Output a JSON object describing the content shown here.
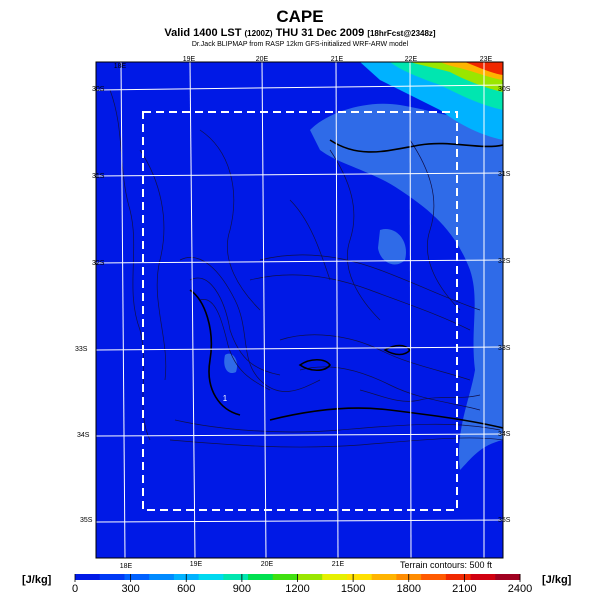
{
  "title": "CAPE",
  "subtitle": {
    "main": "Valid 1400 LST",
    "code": "(1200Z)",
    "date": "THU 31 Dec 2009",
    "forecast": "[18hrFcst@2348z]"
  },
  "credit": "Dr.Jack BLIPMAP from RASP 12km GFS-initialized WRF-ARW model",
  "longitude_labels_top": [
    "18E",
    "19E",
    "20E",
    "21E",
    "22E",
    "23E"
  ],
  "longitude_labels_bottom": [
    "18E",
    "19E",
    "20E",
    "21E"
  ],
  "latitude_labels_right": [
    "30S",
    "31S",
    "32S",
    "33S",
    "34S",
    "35S"
  ],
  "latitude_labels_left": [
    "30S",
    "31S",
    "32S",
    "33S",
    "34S",
    "35S"
  ],
  "spot_label": "1",
  "terrain_note": "Terrain contours: 500 ft",
  "colorbar": {
    "unit": "[J/kg]",
    "ticks": [
      "0",
      "300",
      "600",
      "900",
      "1200",
      "1500",
      "1800",
      "2100",
      "2400"
    ],
    "colors": [
      "#0019e6",
      "#0039f5",
      "#0061ff",
      "#008aff",
      "#00b2ff",
      "#00d9f0",
      "#00e6b0",
      "#00e050",
      "#40e010",
      "#9ae600",
      "#e6f000",
      "#ffe000",
      "#ffb400",
      "#ff8c00",
      "#ff5a00",
      "#f02800",
      "#d00010",
      "#a00020"
    ]
  },
  "colors": {
    "background_field": "#0019e6",
    "low_field": "#2f6be8"
  }
}
